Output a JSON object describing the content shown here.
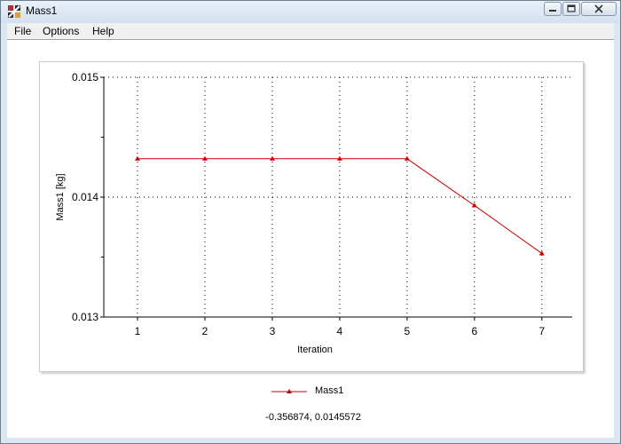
{
  "window": {
    "title": "Mass1",
    "controls": [
      "minimize",
      "maximize",
      "close"
    ]
  },
  "menu": {
    "items": [
      {
        "label": "File"
      },
      {
        "label": "Options"
      },
      {
        "label": "Help"
      }
    ]
  },
  "status": {
    "coordinates": "-0.356874, 0.0145572"
  },
  "colors": {
    "series": "#cc0000",
    "grid": "#000000"
  },
  "chart_data": {
    "type": "line",
    "title": "",
    "xlabel": "Iteration",
    "ylabel": "Mass1 [kg]",
    "x": [
      1,
      2,
      3,
      4,
      5,
      6,
      7
    ],
    "series": [
      {
        "name": "Mass1",
        "values": [
          0.01432,
          0.01432,
          0.01432,
          0.01432,
          0.01432,
          0.01393,
          0.01353
        ],
        "marker": "triangle"
      }
    ],
    "xticks": [
      "1",
      "2",
      "3",
      "4",
      "5",
      "6",
      "7"
    ],
    "yticks": [
      "0.013",
      "0.014",
      "0.015"
    ],
    "ylim": [
      0.013,
      0.015
    ],
    "grid": true,
    "legend": "bottom-center"
  }
}
